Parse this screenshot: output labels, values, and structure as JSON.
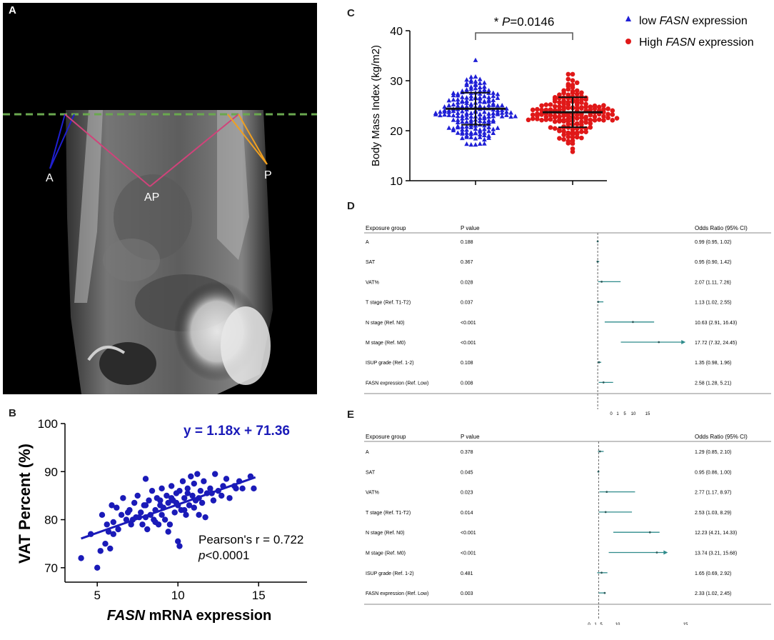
{
  "panels": {
    "a": {
      "letter": "A",
      "labels": {
        "anterior": "A",
        "apex": "AP",
        "posterior": "P"
      }
    },
    "b": {
      "letter": "B"
    },
    "c": {
      "letter": "C"
    },
    "d": {
      "letter": "D"
    },
    "e": {
      "letter": "E"
    }
  },
  "colors": {
    "guide_line": "#6aa84f",
    "anterior_line": "#1f1fcf",
    "ap_line": "#d0437a",
    "posterior_line": "#f0a020",
    "scatter": "#1a1ab8",
    "low_group": "#1f1fd6",
    "high_group": "#e01818",
    "forest": "#2e8b8b"
  },
  "chart_data": [
    {
      "id": "B",
      "type": "scatter",
      "equation": "y = 1.18x + 71.36",
      "stats": {
        "line1": "Pearson's r = 0.722",
        "p_italic": "p",
        "p_rest": "<0.0001"
      },
      "xlabel": {
        "italic": "FASN",
        "rest": " mRNA expression"
      },
      "ylabel": "VAT Percent (%)",
      "xlim": [
        3,
        18
      ],
      "ylim": [
        67,
        100
      ],
      "xticks": [
        5,
        10,
        15
      ],
      "yticks": [
        70,
        80,
        90,
        100
      ],
      "regression": {
        "slope": 1.18,
        "intercept": 71.36,
        "x_range": [
          4.0,
          14.8
        ]
      },
      "x": [
        4.0,
        4.6,
        5.0,
        5.2,
        5.3,
        5.5,
        5.6,
        5.7,
        5.9,
        6.0,
        6.2,
        6.3,
        6.5,
        6.6,
        6.8,
        7.0,
        7.1,
        7.3,
        7.4,
        7.5,
        7.7,
        7.8,
        8.0,
        8.0,
        8.1,
        8.2,
        8.3,
        8.4,
        8.5,
        8.6,
        8.7,
        8.8,
        8.9,
        9.0,
        9.0,
        9.1,
        9.2,
        9.3,
        9.4,
        9.5,
        9.6,
        9.7,
        9.8,
        9.9,
        10.0,
        10.0,
        10.1,
        10.2,
        10.3,
        10.4,
        10.5,
        10.6,
        10.7,
        10.8,
        10.9,
        11.0,
        11.0,
        11.1,
        11.2,
        11.3,
        11.4,
        11.5,
        11.6,
        11.8,
        12.0,
        12.2,
        12.3,
        12.5,
        12.7,
        13.0,
        13.2,
        13.5,
        13.8,
        14.0,
        14.5,
        14.7,
        8.0,
        9.6,
        10.1,
        6.0,
        7.2,
        11.7,
        12.8,
        9.4,
        10.6,
        6.9,
        8.6,
        9.9,
        11.3,
        7.6,
        5.8,
        13.6,
        12.1,
        10.4,
        8.9,
        7.9
      ],
      "y": [
        72.0,
        77.0,
        70.0,
        73.5,
        81.0,
        75.0,
        79.0,
        77.5,
        83.0,
        79.5,
        82.5,
        78.0,
        81.0,
        84.5,
        80.0,
        82.0,
        79.0,
        83.5,
        80.5,
        85.0,
        81.5,
        79.0,
        83.0,
        88.5,
        78.0,
        84.0,
        81.0,
        86.0,
        80.0,
        82.0,
        84.5,
        79.0,
        83.0,
        81.0,
        86.5,
        82.5,
        80.0,
        85.0,
        83.5,
        79.0,
        87.0,
        84.0,
        81.5,
        85.5,
        83.0,
        75.5,
        86.0,
        82.0,
        88.0,
        84.5,
        81.0,
        86.5,
        83.0,
        89.0,
        85.0,
        82.5,
        87.5,
        84.0,
        89.5,
        81.0,
        86.0,
        83.5,
        88.0,
        85.5,
        86.5,
        84.0,
        89.5,
        86.0,
        85.0,
        88.5,
        84.5,
        87.0,
        88.0,
        86.5,
        89.0,
        86.5,
        80.5,
        84.5,
        74.5,
        77.0,
        80.0,
        80.5,
        87.0,
        77.5,
        85.5,
        81.5,
        79.5,
        83.5,
        84.5,
        80.5,
        74.0,
        86.5,
        85.5,
        82.0,
        84.0,
        83.0
      ]
    },
    {
      "id": "C",
      "type": "scatter",
      "title": "",
      "significance": {
        "prefix": "* ",
        "p_italic": "P",
        "value": "=0.0146"
      },
      "ylabel": "Body Mass Index (kg/m2)",
      "ylim": [
        10,
        40
      ],
      "yticks": [
        10,
        20,
        30,
        40
      ],
      "legend": {
        "position": "top-right"
      },
      "series": [
        {
          "name_pre": "low ",
          "name_italic": "FASN",
          "name_post": " expression",
          "marker": "triangle",
          "mean": 24.4,
          "sd_low": 21.2,
          "sd_high": 27.6,
          "min": 17.2,
          "max": 34.1,
          "n": 200,
          "seed": 7
        },
        {
          "name_pre": "High ",
          "name_italic": "FASN",
          "name_post": " expression",
          "marker": "circle",
          "mean": 23.7,
          "sd_low": 20.7,
          "sd_high": 26.7,
          "min": 15.8,
          "max": 31.3,
          "n": 180,
          "seed": 23
        }
      ]
    },
    {
      "id": "D",
      "type": "table",
      "headers": [
        "Exposure group",
        "P value",
        "Odds Ratio (95% CI)"
      ],
      "axis_ticks": [
        "0",
        "1",
        "5",
        "10",
        "15"
      ],
      "xlim": [
        0,
        25
      ],
      "rows": [
        {
          "group": "A",
          "p": "0.188",
          "or_text": "0.99 (0.95, 1.02)",
          "or": 0.99,
          "lo": 0.95,
          "hi": 1.02,
          "arrow": false
        },
        {
          "group": "SAT",
          "p": "0.367",
          "or_text": "0.95 (0.90, 1.42)",
          "or": 0.95,
          "lo": 0.9,
          "hi": 1.42,
          "arrow": false
        },
        {
          "group": "VAT%",
          "p": "0.028",
          "or_text": "2.07 (1.11, 7.26)",
          "or": 2.07,
          "lo": 1.11,
          "hi": 7.26,
          "arrow": false
        },
        {
          "group": "T stage (Ref. T1-T2)",
          "p": "0.037",
          "or_text": "1.13 (1.02, 2.55)",
          "or": 1.13,
          "lo": 1.02,
          "hi": 2.55,
          "arrow": false
        },
        {
          "group": "N stage (Ref. N0)",
          "p": "<0.001",
          "or_text": "10.63 (2.91, 16.43)",
          "or": 10.63,
          "lo": 2.91,
          "hi": 16.43,
          "arrow": false
        },
        {
          "group": "M stage (Ref. M0)",
          "p": "<0.001",
          "or_text": "17.72 (7.32, 24.45)",
          "or": 17.72,
          "lo": 7.32,
          "hi": 24.45,
          "arrow": true
        },
        {
          "group": "ISUP grade (Ref. 1-2)",
          "p": "0.108",
          "or_text": "1.35 (0.98, 1.96)",
          "or": 1.35,
          "lo": 0.98,
          "hi": 1.96,
          "arrow": false
        },
        {
          "group": "FASN expression (Ref. Low)",
          "p": "0.008",
          "or_text": "2.58 (1.28, 5.21)",
          "or": 2.58,
          "lo": 1.28,
          "hi": 5.21,
          "arrow": false
        }
      ]
    },
    {
      "id": "E",
      "type": "table",
      "headers": [
        "Exposure group",
        "P value",
        "Odds Ratio (95% CI)"
      ],
      "axis_ticks": [
        "0",
        "1",
        "5",
        "10",
        "15"
      ],
      "xlim": [
        0,
        20
      ],
      "rows": [
        {
          "group": "A",
          "p": "0.378",
          "or_text": "1.29 (0.85, 2.10)",
          "or": 1.29,
          "lo": 0.85,
          "hi": 2.1,
          "arrow": false
        },
        {
          "group": "SAT",
          "p": "0.045",
          "or_text": "0.95 (0.86, 1.00)",
          "or": 0.95,
          "lo": 0.86,
          "hi": 1.0,
          "arrow": false
        },
        {
          "group": "VAT%",
          "p": "0.023",
          "or_text": "2.77 (1.17, 8.97)",
          "or": 2.77,
          "lo": 1.17,
          "hi": 8.97,
          "arrow": false
        },
        {
          "group": "T stage (Ref. T1-T2)",
          "p": "0.014",
          "or_text": "2.53 (1.03, 8.29)",
          "or": 2.53,
          "lo": 1.03,
          "hi": 8.29,
          "arrow": false
        },
        {
          "group": "N stage (Ref. N0)",
          "p": "<0.001",
          "or_text": "12.23 (4.21, 14.33)",
          "or": 12.23,
          "lo": 4.21,
          "hi": 14.33,
          "arrow": false
        },
        {
          "group": "M stage (Ref. M0)",
          "p": "<0.001",
          "or_text": "13.74 (3.21, 15.68)",
          "or": 13.74,
          "lo": 3.21,
          "hi": 15.68,
          "arrow": true
        },
        {
          "group": "ISUP grade (Ref. 1-2)",
          "p": "0.481",
          "or_text": "1.65 (0.69, 2.92)",
          "or": 1.65,
          "lo": 0.69,
          "hi": 2.92,
          "arrow": false
        },
        {
          "group": "FASN expression (Ref. Low)",
          "p": "0.003",
          "or_text": "2.33 (1.02, 2.45)",
          "or": 2.33,
          "lo": 1.02,
          "hi": 2.45,
          "arrow": false
        }
      ]
    }
  ]
}
